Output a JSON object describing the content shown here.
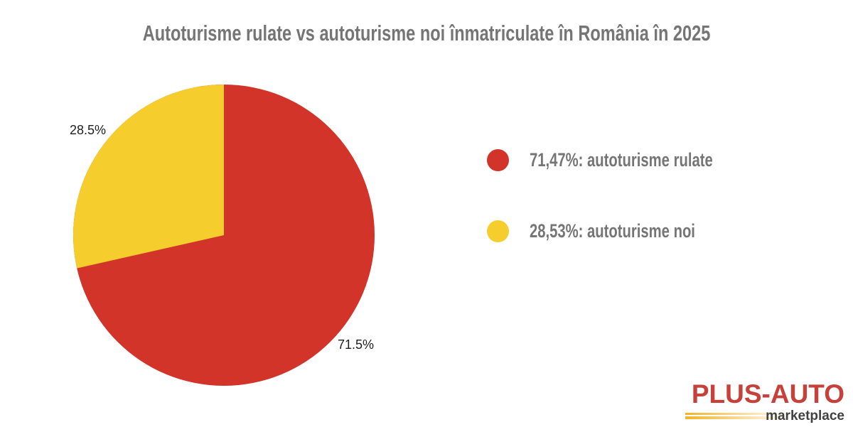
{
  "chart_data": {
    "type": "pie",
    "title": "Autoturisme rulate vs autoturisme noi înmatriculate în România în 2025",
    "slices": [
      {
        "name": "autoturisme rulate",
        "value_pct": 71.47,
        "pie_label": "71.5%",
        "legend_label": "71,47%: autoturisme rulate",
        "color": "#d2342a"
      },
      {
        "name": "autoturisme noi",
        "value_pct": 28.53,
        "pie_label": "28.5%",
        "legend_label": "28,53%: autoturisme noi",
        "color": "#f5cd2c"
      }
    ],
    "start_angle_deg": 0,
    "second_slice_direction": "counterclockwise-from-top",
    "legend_position": "right",
    "slice_labels_position": "outside"
  },
  "logo": {
    "wordmark": "PLUS-AUTO",
    "tagline": "marketplace",
    "wordmark_color": "#c8403a",
    "tagline_color": "#414042",
    "accent_line_color": "#f0b429"
  },
  "colors": {
    "background": "#ffffff",
    "title_text": "#757575",
    "legend_text": "#757575",
    "slice_label_text": "#1e1e1e"
  }
}
